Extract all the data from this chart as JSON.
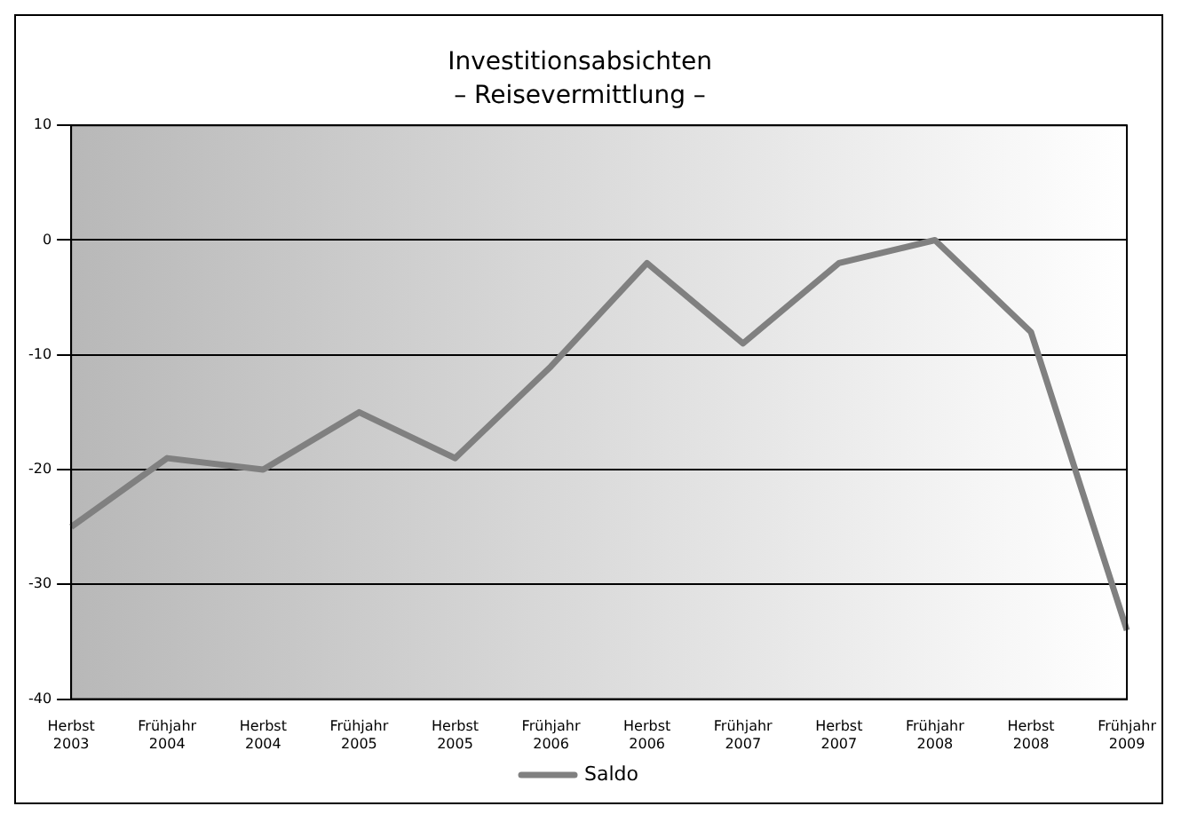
{
  "chart_data": {
    "type": "line",
    "title": "Investitionsabsichten",
    "subtitle": "– Reisevermittlung –",
    "categories": [
      "Herbst 2003",
      "Frühjahr 2004",
      "Herbst 2004",
      "Frühjahr 2005",
      "Herbst 2005",
      "Frühjahr 2006",
      "Herbst 2006",
      "Frühjahr 2007",
      "Herbst 2007",
      "Frühjahr 2008",
      "Herbst 2008",
      "Frühjahr 2009"
    ],
    "series": [
      {
        "name": "Saldo",
        "color": "#808080",
        "values": [
          -25,
          -19,
          -20,
          -15,
          -19,
          -11,
          -2,
          -9,
          -2,
          0,
          -8,
          -34
        ]
      }
    ],
    "ylim": [
      -40,
      10
    ],
    "yticks": [
      -40,
      -30,
      -20,
      -10,
      0,
      10
    ],
    "grid": "y",
    "legend": "bottom",
    "marker": "none",
    "line_style": "solid"
  }
}
